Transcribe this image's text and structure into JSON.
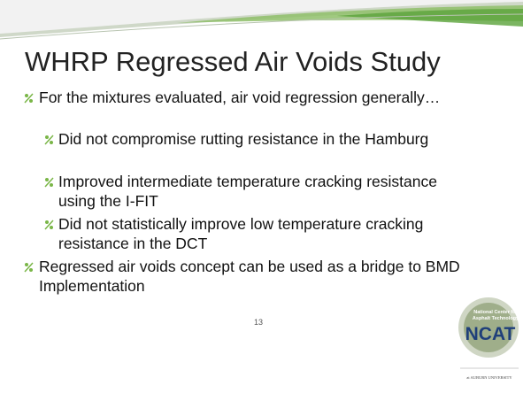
{
  "slide": {
    "title": "WHRP Regressed Air Voids Study",
    "bullets": [
      {
        "text": "For the mixtures evaluated, air void regression generally…",
        "children": [
          "Did not compromise rutting resistance in the Hamburg",
          "Improved intermediate temperature cracking resistance using the I-FIT",
          "Did not statistically improve low temperature cracking resistance in the DCT"
        ]
      },
      {
        "text": "Regressed air voids concept can be used as a bridge to BMD Implementation"
      }
    ],
    "page_number": "13",
    "logo": {
      "line1": "National Center for",
      "line2": "Asphalt Technology",
      "name": "NCAT",
      "affiliation": "at AUBURN UNIVERSITY"
    }
  }
}
